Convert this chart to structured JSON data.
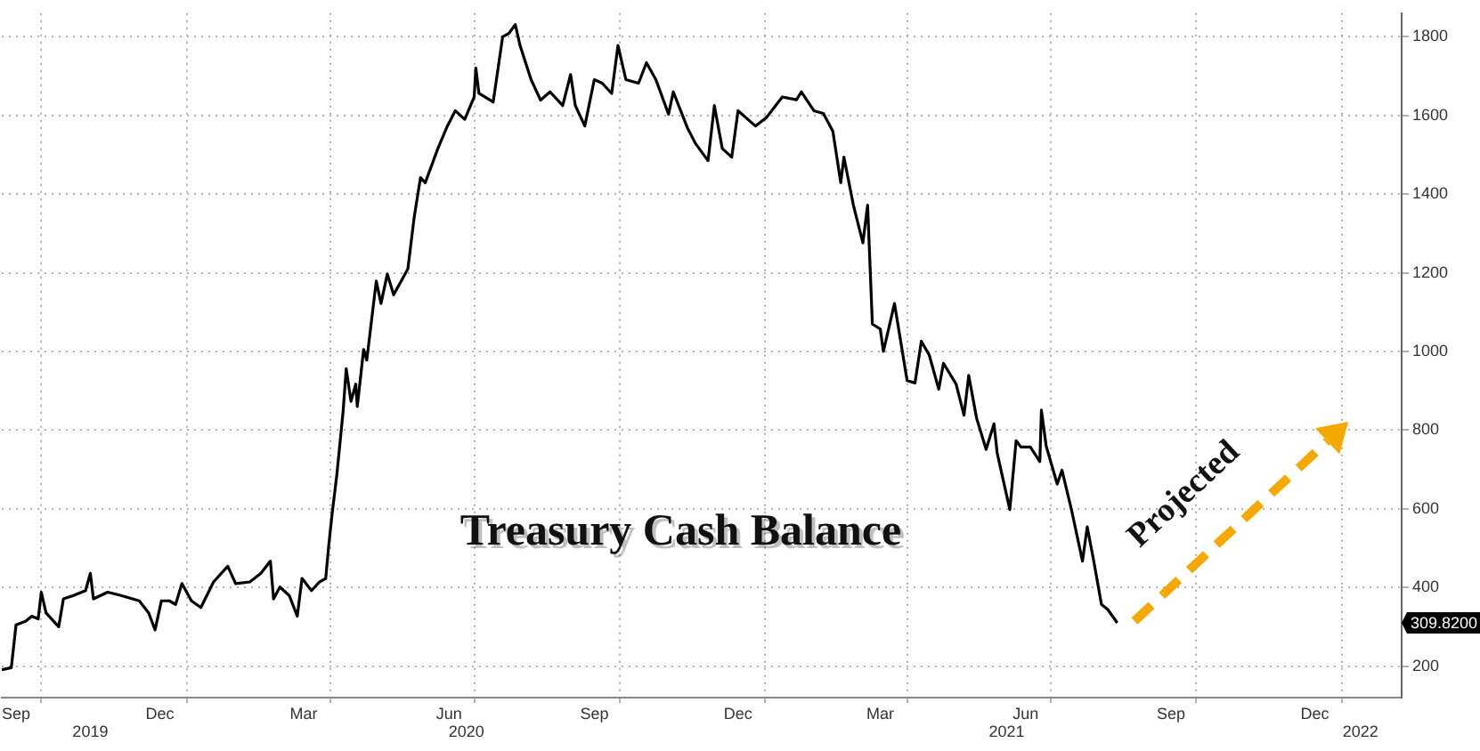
{
  "chart_data": {
    "type": "line",
    "title": "Treasury Cash Balance",
    "marker": "none",
    "grid": true,
    "legend": false,
    "xlim": [
      "2019-09-06",
      "2022-02-08"
    ],
    "ylim": [
      120,
      1860
    ],
    "xticks": [
      {
        "value": "2019-09-15",
        "label": "Sep"
      },
      {
        "value": "2019-10-01",
        "label": null
      },
      {
        "value": "2019-12-15",
        "label": "Dec"
      },
      {
        "value": "2020-01-01",
        "label": null
      },
      {
        "value": "2020-03-15",
        "label": "Mar"
      },
      {
        "value": "2020-04-01",
        "label": null
      },
      {
        "value": "2020-06-15",
        "label": "Jun"
      },
      {
        "value": "2020-07-01",
        "label": null
      },
      {
        "value": "2020-09-15",
        "label": "Sep"
      },
      {
        "value": "2020-10-01",
        "label": null
      },
      {
        "value": "2020-12-15",
        "label": "Dec"
      },
      {
        "value": "2021-01-01",
        "label": null
      },
      {
        "value": "2021-03-15",
        "label": "Mar"
      },
      {
        "value": "2021-04-01",
        "label": null
      },
      {
        "value": "2021-06-15",
        "label": "Jun"
      },
      {
        "value": "2021-07-01",
        "label": null
      },
      {
        "value": "2021-09-15",
        "label": "Sep"
      },
      {
        "value": "2021-10-01",
        "label": null
      },
      {
        "value": "2021-12-15",
        "label": "Dec"
      },
      {
        "value": "2022-01-01",
        "label": null
      }
    ],
    "x2lim": [
      "2019-09-06",
      "2022-02-08"
    ],
    "x2ticks": [
      {
        "value": "2019-11-01",
        "label": "2019"
      },
      {
        "value": "2020-06-26",
        "label": "2020"
      },
      {
        "value": "2021-06-03",
        "label": "2021"
      },
      {
        "value": "2022-01-13",
        "label": "2022"
      }
    ],
    "yticks": [
      200,
      400,
      600,
      800,
      1000,
      1200,
      1400,
      1600,
      1800
    ],
    "annotations": [
      "309.8200",
      "Projected"
    ],
    "series": [
      {
        "color": "#000000",
        "line_style": "solid",
        "x": [
          "2019-09-06",
          "2019-09-12",
          "2019-09-15",
          "2019-09-21",
          "2019-09-25",
          "2019-09-29",
          "2019-10-01",
          "2019-10-04",
          "2019-10-12",
          "2019-10-15",
          "2019-10-21",
          "2019-10-29",
          "2019-11-01",
          "2019-11-03",
          "2019-11-12",
          "2019-11-20",
          "2019-12-02",
          "2019-12-08",
          "2019-12-12",
          "2019-12-16",
          "2019-12-21",
          "2019-12-25",
          "2019-12-29",
          "2020-01-04",
          "2020-01-10",
          "2020-01-18",
          "2020-01-27",
          "2020-02-01",
          "2020-02-10",
          "2020-02-17",
          "2020-02-23",
          "2020-02-25",
          "2020-02-29",
          "2020-03-06",
          "2020-03-11",
          "2020-03-14",
          "2020-03-20",
          "2020-03-25",
          "2020-03-29",
          "2020-03-31",
          "2020-04-02",
          "2020-04-05",
          "2020-04-09",
          "2020-04-11",
          "2020-04-14",
          "2020-04-17",
          "2020-04-18",
          "2020-04-22",
          "2020-04-24",
          "2020-04-30",
          "2020-05-03",
          "2020-05-07",
          "2020-05-11",
          "2020-05-20",
          "2020-05-24",
          "2020-05-28",
          "2020-05-31",
          "2020-06-08",
          "2020-06-14",
          "2020-06-19",
          "2020-06-25",
          "2020-07-01",
          "2020-07-02",
          "2020-07-04",
          "2020-07-13",
          "2020-07-19",
          "2020-07-23",
          "2020-07-27",
          "2020-07-30",
          "2020-08-06",
          "2020-08-12",
          "2020-08-18",
          "2020-08-26",
          "2020-08-31",
          "2020-09-03",
          "2020-09-09",
          "2020-09-15",
          "2020-09-20",
          "2020-09-26",
          "2020-09-30",
          "2020-10-05",
          "2020-10-13",
          "2020-10-18",
          "2020-10-24",
          "2020-11-01",
          "2020-11-04",
          "2020-11-13",
          "2020-11-18",
          "2020-11-26",
          "2020-11-30",
          "2020-12-05",
          "2020-12-11",
          "2020-12-15",
          "2020-12-26",
          "2021-01-02",
          "2021-01-12",
          "2021-01-21",
          "2021-01-24",
          "2021-02-01",
          "2021-02-07",
          "2021-02-13",
          "2021-02-18",
          "2021-02-20",
          "2021-02-26",
          "2021-03-04",
          "2021-03-07",
          "2021-03-10",
          "2021-03-15",
          "2021-03-17",
          "2021-03-24",
          "2021-04-01",
          "2021-04-06",
          "2021-04-10",
          "2021-04-15",
          "2021-04-21",
          "2021-04-24",
          "2021-05-02",
          "2021-05-07",
          "2021-05-10",
          "2021-05-15",
          "2021-05-21",
          "2021-05-26",
          "2021-05-28",
          "2021-06-05",
          "2021-06-09",
          "2021-06-12",
          "2021-06-18",
          "2021-06-24",
          "2021-06-25",
          "2021-06-28",
          "2021-07-05",
          "2021-07-08",
          "2021-07-14",
          "2021-07-21",
          "2021-07-24",
          "2021-07-28",
          "2021-08-02",
          "2021-08-06",
          "2021-08-12"
        ],
        "values": [
          191,
          196,
          305,
          314,
          327,
          320,
          388,
          335,
          300,
          371,
          379,
          392,
          436,
          371,
          388,
          380,
          366,
          335,
          292,
          366,
          366,
          357,
          410,
          366,
          349,
          414,
          454,
          410,
          414,
          436,
          467,
          371,
          401,
          379,
          327,
          423,
          392,
          414,
          423,
          510,
          585,
          685,
          847,
          956,
          873,
          917,
          860,
          1005,
          978,
          1179,
          1122,
          1197,
          1144,
          1210,
          1341,
          1442,
          1429,
          1516,
          1573,
          1612,
          1590,
          1647,
          1721,
          1656,
          1634,
          1800,
          1809,
          1831,
          1778,
          1691,
          1639,
          1660,
          1625,
          1704,
          1625,
          1573,
          1691,
          1682,
          1656,
          1778,
          1691,
          1682,
          1734,
          1691,
          1603,
          1660,
          1568,
          1529,
          1485,
          1625,
          1516,
          1494,
          1612,
          1573,
          1595,
          1647,
          1640,
          1660,
          1612,
          1605,
          1560,
          1429,
          1494,
          1372,
          1276,
          1372,
          1070,
          1057,
          1000,
          1122,
          926,
          920,
          1026,
          991,
          904,
          970,
          917,
          838,
          939,
          830,
          751,
          816,
          742,
          598,
          773,
          757,
          757,
          720,
          851,
          760,
          663,
          698,
          598,
          467,
          554,
          470,
          357,
          344,
          310
        ]
      }
    ]
  }
}
